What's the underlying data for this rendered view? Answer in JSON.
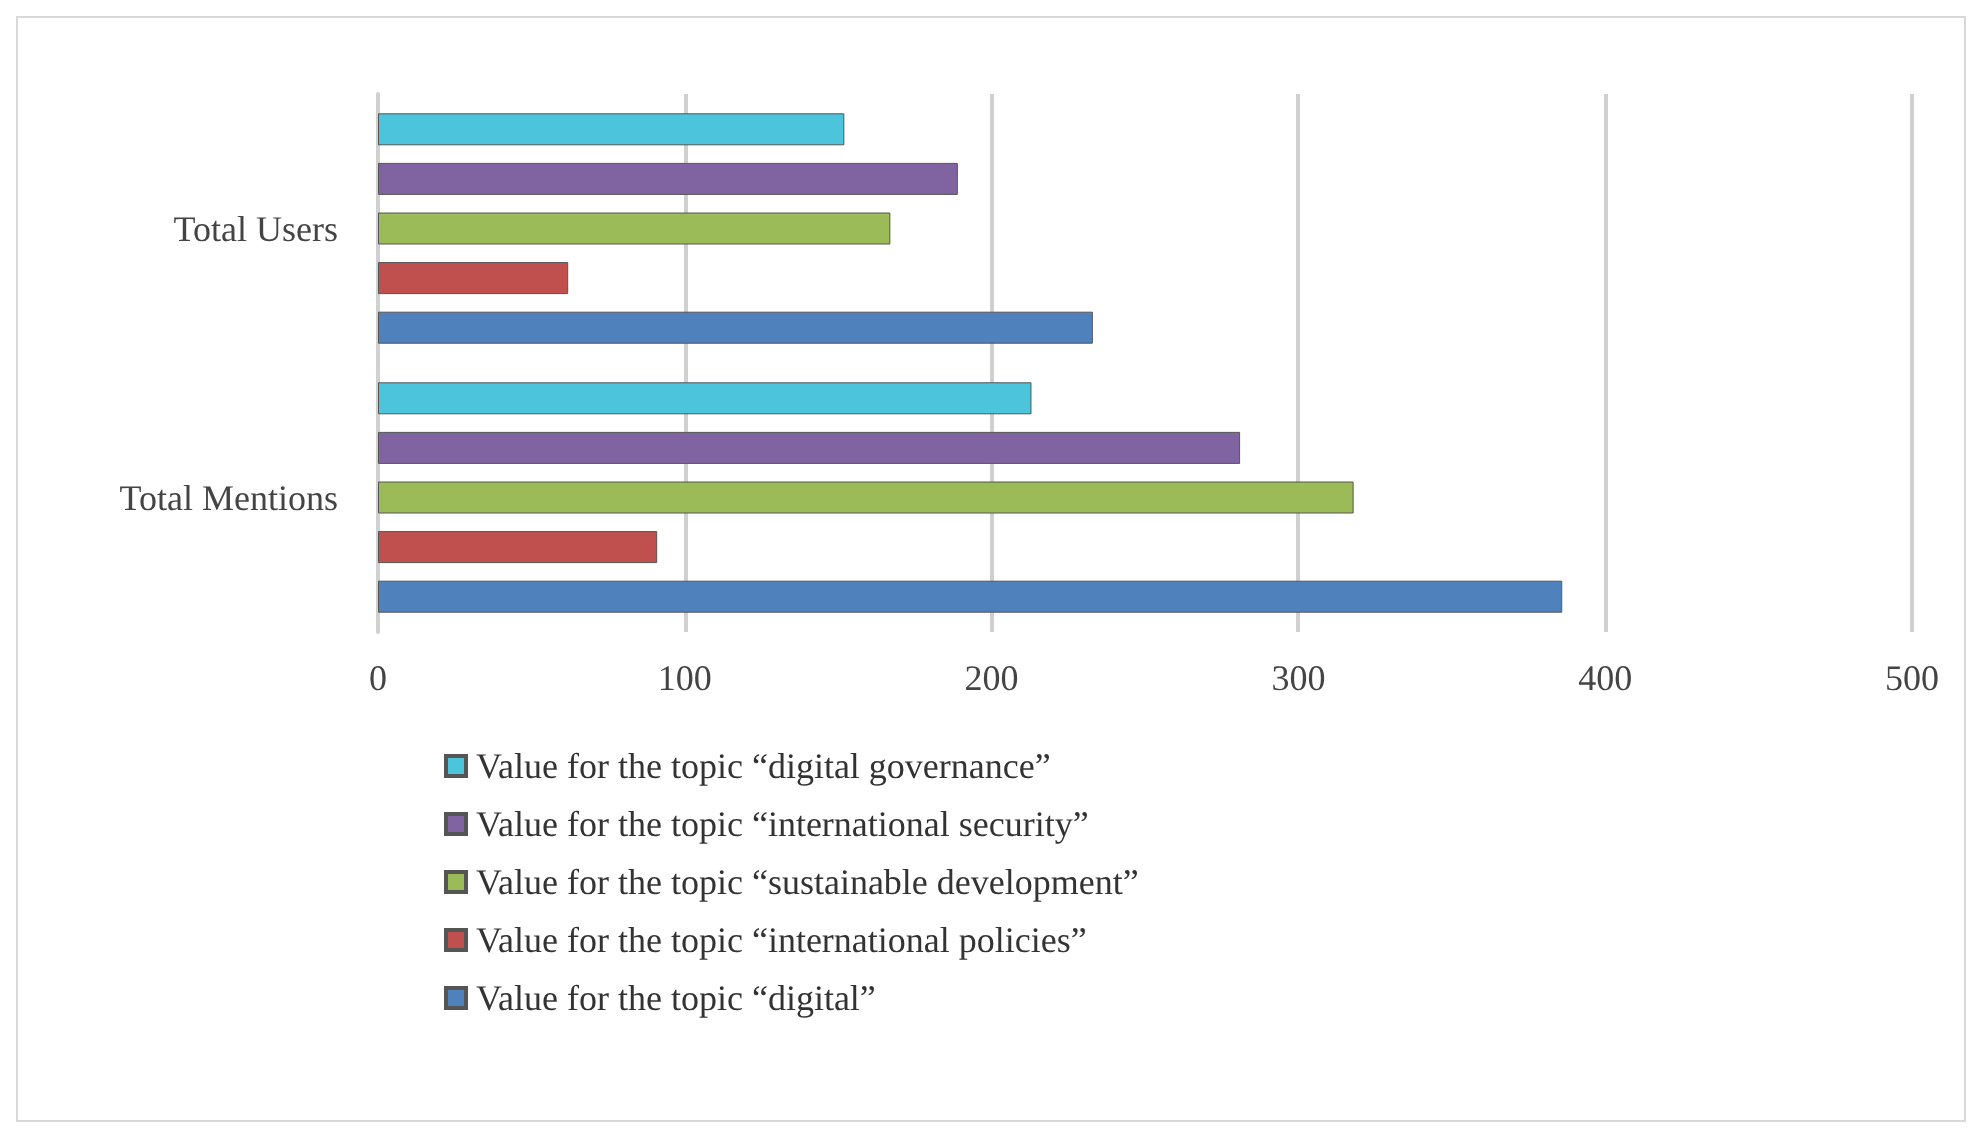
{
  "chart_data": {
    "type": "bar",
    "orientation": "horizontal",
    "categories": [
      "Total Users",
      "Total Mentions"
    ],
    "series": [
      {
        "name": "Value for the topic “digital”",
        "color": "#4f81bd",
        "values": [
          233,
          386
        ]
      },
      {
        "name": "Value for the topic “international policies”",
        "color": "#c0504d",
        "values": [
          62,
          91
        ]
      },
      {
        "name": "Value for the topic “sustainable development”",
        "color": "#9bbb59",
        "values": [
          167,
          318
        ]
      },
      {
        "name": "Value for the topic “international security”",
        "color": "#8064a2",
        "values": [
          189,
          281
        ]
      },
      {
        "name": "Value for the topic “digital governance”",
        "color": "#4bc4dc",
        "values": [
          152,
          213
        ]
      }
    ],
    "xlim": [
      0,
      500
    ],
    "xticks": [
      0,
      100,
      200,
      300,
      400,
      500
    ],
    "grid": "x",
    "legend": "bottom"
  }
}
